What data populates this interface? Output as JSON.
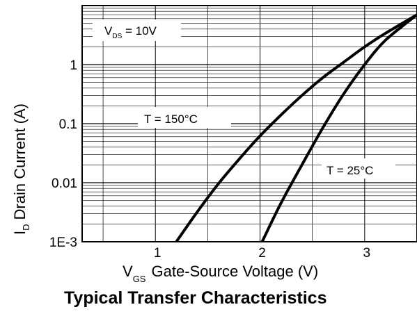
{
  "chart_data": {
    "type": "line",
    "title": "Typical Transfer Characteristics",
    "xlabel": {
      "main": "V",
      "sub": "GS",
      "text": "Gate-Source Voltage (V)"
    },
    "ylabel": {
      "main": "I",
      "sub": "D",
      "text": "Drain Current (A)"
    },
    "xlim": [
      0.3,
      3.5
    ],
    "ylim": [
      0.001,
      10
    ],
    "yscale": "log",
    "grid": {
      "x": true,
      "y": true
    },
    "xticks": [
      {
        "value": 1,
        "label": "1"
      },
      {
        "value": 2,
        "label": "2"
      },
      {
        "value": 3,
        "label": "3"
      }
    ],
    "yticks": [
      {
        "value": 1,
        "label": "1"
      },
      {
        "value": 0.1,
        "label": "0.1"
      },
      {
        "value": 0.01,
        "label": "0.01"
      },
      {
        "value": 0.001,
        "label": "1E-3"
      }
    ],
    "series": [
      {
        "name": "T = 150°C",
        "x": [
          1.2,
          1.4,
          1.6,
          1.8,
          2.0,
          2.2,
          2.4,
          2.6,
          2.8,
          3.0,
          3.2,
          3.5
        ],
        "y": [
          0.001,
          0.0032,
          0.0095,
          0.025,
          0.062,
          0.14,
          0.3,
          0.6,
          1.1,
          2.0,
          3.4,
          7.0
        ]
      },
      {
        "name": "T = 25°C",
        "x": [
          2.02,
          2.2,
          2.4,
          2.6,
          2.8,
          3.0,
          3.2,
          3.5
        ],
        "y": [
          0.001,
          0.0045,
          0.02,
          0.085,
          0.32,
          1.0,
          2.6,
          7.0
        ]
      }
    ],
    "annotations": [
      {
        "main": "V",
        "sub": "DS",
        "text": " = 10V"
      },
      {
        "text": "T = 150°C"
      },
      {
        "text": "T = 25°C"
      }
    ]
  }
}
